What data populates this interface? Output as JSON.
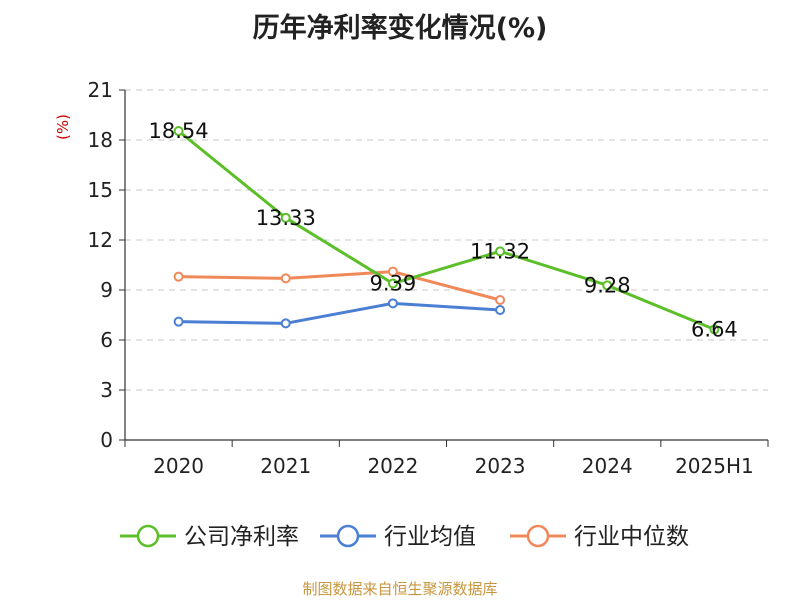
{
  "chart_data": {
    "type": "line",
    "title": "历年净利率变化情况(%)",
    "ylabel": "(%)",
    "xlabel": "",
    "categories": [
      "2020",
      "2021",
      "2022",
      "2023",
      "2024",
      "2025H1"
    ],
    "ylim": [
      0,
      21
    ],
    "yticks": [
      0,
      3,
      6,
      9,
      12,
      15,
      18,
      21
    ],
    "grid": true,
    "legend_position": "bottom",
    "series": [
      {
        "name": "公司净利率",
        "color": "#5cbf2a",
        "values": [
          18.54,
          13.33,
          9.39,
          11.32,
          9.28,
          6.64
        ],
        "labels": [
          "18.54",
          "13.33",
          "9.39",
          "11.32",
          "9.28",
          "6.64"
        ]
      },
      {
        "name": "行业均值",
        "color": "#4a7fd4",
        "values": [
          7.1,
          7.0,
          8.2,
          7.8,
          null,
          null
        ]
      },
      {
        "name": "行业中位数",
        "color": "#f0895a",
        "values": [
          9.8,
          9.7,
          10.1,
          8.4,
          null,
          null
        ]
      }
    ]
  },
  "footer": {
    "source": "制图数据来自恒生聚源数据库"
  }
}
